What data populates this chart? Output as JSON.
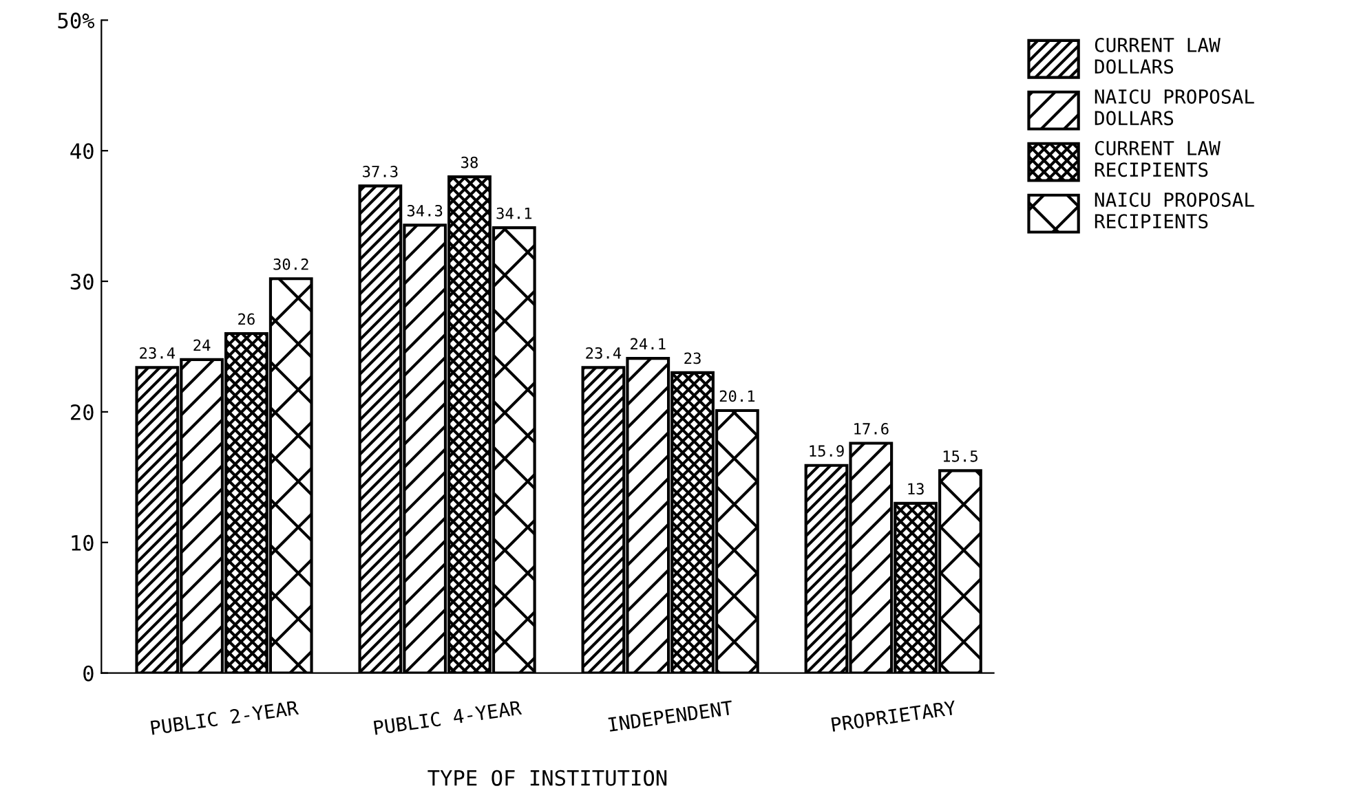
{
  "chart_data": {
    "type": "bar",
    "xlabel": "TYPE OF INSTITUTION",
    "categories": [
      "PUBLIC 2-YEAR",
      "PUBLIC 4-YEAR",
      "INDEPENDENT",
      "PROPRIETARY"
    ],
    "series": [
      {
        "name": "CURRENT LAW\nDOLLARS",
        "color": "#000000",
        "values": [
          23.4,
          37.3,
          23.4,
          15.9
        ]
      },
      {
        "name": "NAICU PROPOSAL\nDOLLARS",
        "color": "#000000",
        "values": [
          24,
          34.3,
          24.1,
          17.6
        ]
      },
      {
        "name": "CURRENT LAW\nRECIPIENTS",
        "color": "#000000",
        "values": [
          26,
          38,
          23,
          13
        ]
      },
      {
        "name": "NAICU PROPOSAL\nRECIPIENTS",
        "color": "#000000",
        "values": [
          30.2,
          34.1,
          20.1,
          15.5
        ]
      }
    ],
    "ylim": [
      0,
      50
    ],
    "yticks": [
      0,
      10,
      20,
      30,
      40,
      {
        "value": 50,
        "label": "50%"
      }
    ],
    "data_labels": true,
    "grid": false,
    "legend": "top right"
  }
}
